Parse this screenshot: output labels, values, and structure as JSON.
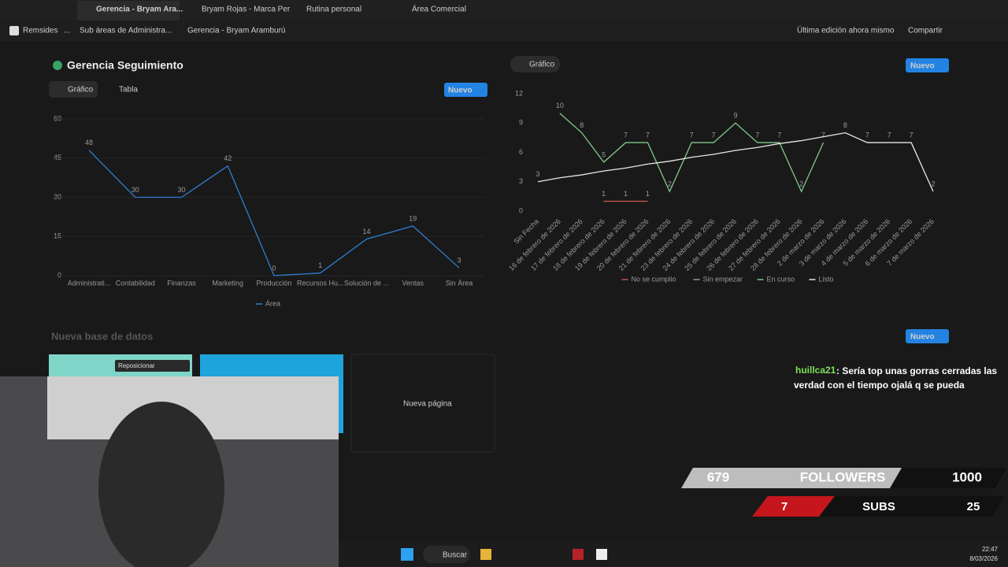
{
  "tabs": [
    "Gerencia - Bryam Ara...",
    "Bryam Rojas - Marca Per",
    "Rutina personal",
    "Área Comercial"
  ],
  "breadcrumb": [
    "Remsides",
    "...",
    "Sub áreas de Administra...",
    "Gerencia - Bryam Aramburú"
  ],
  "topbar": {
    "last_edit": "Última edición ahora mismo",
    "share": "Compartir"
  },
  "left_panel": {
    "title": "Gerencia Seguimiento",
    "views": [
      "Gráfico",
      "Tabla"
    ],
    "new_button": "Nuevo"
  },
  "right_panel": {
    "view": "Gráfico",
    "new_button": "Nuevo"
  },
  "database": {
    "title": "Nueva base de datos",
    "reposition": "Reposicionar",
    "new_page": "Nueva página",
    "new_button": "Nuevo"
  },
  "chat": {
    "user": "huillca21",
    "message": ": Sería top unas gorras cerradas las verdad con el tiempo ojalá q se pueda"
  },
  "overlay": {
    "followers": 679,
    "followers_label": "FOLLOWERS",
    "followers_goal": 1000,
    "subs": 7,
    "subs_label": "SUBS",
    "subs_goal": 25
  },
  "taskbar": {
    "search": "Buscar",
    "time": "22:47",
    "date": "8/03/2026"
  },
  "chart_data": [
    {
      "type": "line",
      "categories": [
        "Administrati...",
        "Contabilidad",
        "Finanzas",
        "Marketing",
        "Producción",
        "Recursos Hu...",
        "Solución de ...",
        "Ventas",
        "Sin Área"
      ],
      "series": [
        {
          "name": "Área",
          "color": "#2f7dd1",
          "values": [
            48,
            30,
            30,
            42,
            0,
            1,
            14,
            19,
            3
          ]
        }
      ],
      "ylim": [
        0,
        60
      ],
      "yticks": [
        0,
        15,
        30,
        45,
        60
      ],
      "grid": true,
      "legend": "bottom"
    },
    {
      "type": "line",
      "categories": [
        "Sin Fecha",
        "16 de febrero de 2026",
        "17 de febrero de 2026",
        "18 de febrero de 2026",
        "19 de febrero de 2026",
        "20 de febrero de 2026",
        "21 de febrero de 2026",
        "23 de febrero de 2026",
        "24 de febrero de 2026",
        "25 de febrero de 2026",
        "26 de febrero de 2026",
        "27 de febrero de 2026",
        "28 de febrero de 2026",
        "2 de marzo de 2026",
        "3 de marzo de 2026",
        "4 de marzo de 2026",
        "5 de marzo de 2026",
        "6 de marzo de 2026",
        "7 de marzo de 2026"
      ],
      "series": [
        {
          "name": "No se cumplio",
          "color": "#c4554d",
          "values": [
            null,
            null,
            null,
            1,
            1,
            1,
            null,
            null,
            null,
            null,
            null,
            null,
            null,
            null,
            null,
            null,
            null,
            null,
            null
          ]
        },
        {
          "name": "Sin empezar",
          "color": "#9b9b9b",
          "values": [
            null,
            null,
            null,
            null,
            null,
            null,
            null,
            null,
            null,
            null,
            null,
            null,
            null,
            null,
            null,
            null,
            null,
            null,
            null
          ]
        },
        {
          "name": "En curso",
          "color": "#7fc98a",
          "values": [
            null,
            10,
            8,
            5,
            7,
            7,
            2,
            7,
            7,
            9,
            7,
            7,
            2,
            7,
            null,
            null,
            null,
            null,
            null
          ]
        },
        {
          "name": "Listo",
          "color": "#e8e8e8",
          "values": [
            3,
            3.4,
            3.7,
            4.1,
            4.4,
            4.8,
            5.1,
            5.5,
            5.8,
            6.2,
            6.5,
            6.9,
            7.2,
            7.6,
            8,
            7,
            7,
            7,
            2
          ]
        }
      ],
      "ylim": [
        0,
        12
      ],
      "yticks": [
        0,
        3,
        6,
        9,
        12
      ],
      "grid": false,
      "legend": "bottom"
    }
  ]
}
